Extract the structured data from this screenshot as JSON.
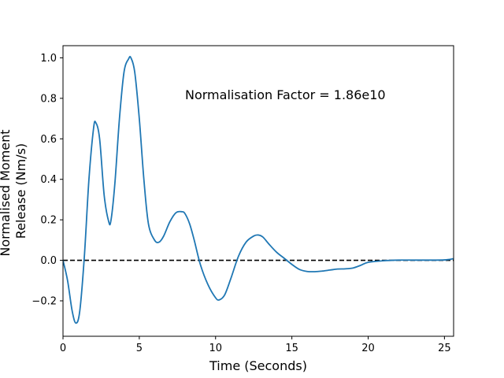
{
  "chart_data": {
    "type": "line",
    "title": "",
    "xlabel": "Time (Seconds)",
    "ylabel_lines": [
      "Normalised Moment",
      "Release (Nm/s)"
    ],
    "xlim": [
      0,
      25.6
    ],
    "ylim": [
      -0.375,
      1.06
    ],
    "xticks": [
      0,
      5,
      10,
      15,
      20,
      25
    ],
    "yticks": [
      -0.2,
      0.0,
      0.2,
      0.4,
      0.6,
      0.8,
      1.0
    ],
    "ytick_labels": [
      "−0.2",
      "0.0",
      "0.2",
      "0.4",
      "0.6",
      "0.8",
      "1.0"
    ],
    "grid": false,
    "annotation": {
      "text": "Normalisation Factor = 1.86e10",
      "x": 8.0,
      "y": 0.8
    },
    "reference_line": {
      "y": 0.0,
      "style": "dashed",
      "color": "#000000"
    },
    "series": [
      {
        "color": "#1f77b4",
        "x": [
          0,
          0.3,
          0.6,
          0.85,
          1.1,
          1.4,
          1.7,
          2.0,
          2.15,
          2.4,
          2.7,
          3.0,
          3.15,
          3.4,
          3.7,
          4.0,
          4.3,
          4.45,
          4.7,
          5.0,
          5.3,
          5.6,
          6.0,
          6.3,
          6.6,
          7.0,
          7.4,
          7.8,
          8.0,
          8.3,
          8.6,
          9.0,
          9.5,
          10.0,
          10.25,
          10.6,
          11.0,
          11.5,
          12.0,
          12.5,
          12.8,
          13.1,
          13.5,
          14.0,
          14.5,
          15.0,
          15.5,
          16.0,
          16.5,
          17.0,
          17.5,
          18.0,
          18.5,
          19.0,
          19.5,
          20.0,
          21.0,
          22.0,
          23.0,
          24.0,
          25.0,
          25.6
        ],
        "y": [
          0.0,
          -0.1,
          -0.25,
          -0.31,
          -0.25,
          0.02,
          0.4,
          0.65,
          0.68,
          0.6,
          0.32,
          0.19,
          0.2,
          0.38,
          0.7,
          0.93,
          0.995,
          1.0,
          0.93,
          0.7,
          0.4,
          0.18,
          0.1,
          0.09,
          0.12,
          0.19,
          0.235,
          0.24,
          0.23,
          0.18,
          0.1,
          -0.02,
          -0.12,
          -0.185,
          -0.195,
          -0.17,
          -0.09,
          0.02,
          0.09,
          0.12,
          0.125,
          0.115,
          0.08,
          0.04,
          0.01,
          -0.02,
          -0.045,
          -0.055,
          -0.056,
          -0.053,
          -0.048,
          -0.043,
          -0.042,
          -0.038,
          -0.025,
          -0.01,
          -0.002,
          0.001,
          0.001,
          0.001,
          0.002,
          0.008
        ]
      }
    ]
  }
}
